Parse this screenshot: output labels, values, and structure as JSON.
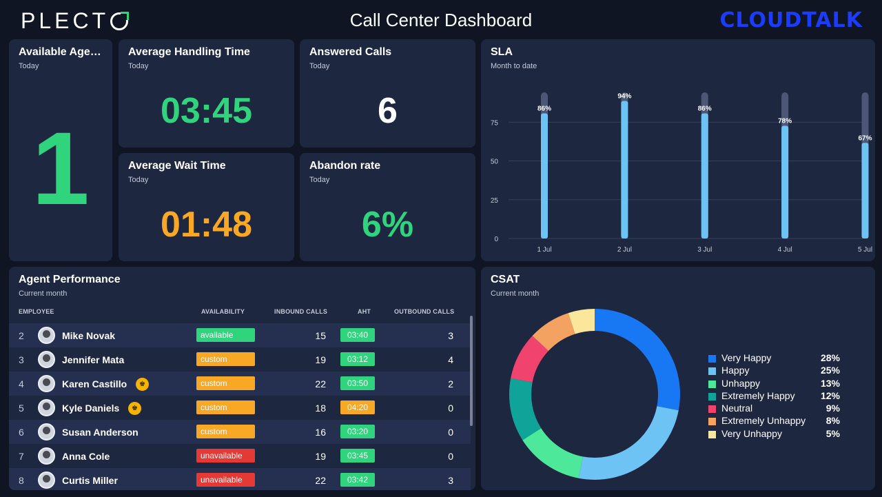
{
  "header": {
    "brand_left": "PLECT",
    "title": "Call Center Dashboard",
    "brand_right": "CLOUDTALK"
  },
  "colors": {
    "background": "#0f1522",
    "card": "#1e2740",
    "green": "#2fd47d",
    "orange": "#f9a825",
    "red": "#e53935",
    "blue_brand": "#1b3cff",
    "bar": "#6ec3f5"
  },
  "cards": {
    "available_agents": {
      "title": "Available Age…",
      "subtitle": "Today",
      "value": "1"
    },
    "aht": {
      "title": "Average Handling Time",
      "subtitle": "Today",
      "value": "03:45"
    },
    "answered": {
      "title": "Answered Calls",
      "subtitle": "Today",
      "value": "6"
    },
    "awt": {
      "title": "Average Wait Time",
      "subtitle": "Today",
      "value": "01:48"
    },
    "abandon": {
      "title": "Abandon rate",
      "subtitle": "Today",
      "value": "6%"
    },
    "sla": {
      "title": "SLA",
      "subtitle": "Month to date"
    },
    "agent_perf": {
      "title": "Agent Performance",
      "subtitle": "Current month"
    },
    "csat": {
      "title": "CSAT",
      "subtitle": "Current month"
    }
  },
  "table": {
    "headers": {
      "employee": "EMPLOYEE",
      "availability": "AVAILABILITY",
      "inbound": "INBOUND CALLS",
      "aht": "AHT",
      "outbound": "OUTBOUND CALLS"
    },
    "rows": [
      {
        "idx": "2",
        "name": "Mike Novak",
        "availability": "available",
        "inbound": "15",
        "aht": "03:40",
        "outbound": "3"
      },
      {
        "idx": "3",
        "name": "Jennifer Mata",
        "availability": "custom",
        "inbound": "19",
        "aht": "03:12",
        "outbound": "4"
      },
      {
        "idx": "4",
        "name": "Karen Castillo",
        "availability": "custom",
        "inbound": "22",
        "aht": "03:50",
        "outbound": "2"
      },
      {
        "idx": "5",
        "name": "Kyle Daniels",
        "availability": "custom",
        "inbound": "18",
        "aht": "04:20",
        "outbound": "0"
      },
      {
        "idx": "6",
        "name": "Susan Anderson",
        "availability": "custom",
        "inbound": "16",
        "aht": "03:20",
        "outbound": "0"
      },
      {
        "idx": "7",
        "name": "Anna Cole",
        "availability": "unavailable",
        "inbound": "19",
        "aht": "03:45",
        "outbound": "0"
      },
      {
        "idx": "8",
        "name": "Curtis Miller",
        "availability": "unavailable",
        "inbound": "22",
        "aht": "03:42",
        "outbound": "3"
      }
    ]
  },
  "chart_data": [
    {
      "type": "bar",
      "categories": [
        "1 Jul",
        "2 Jul",
        "3 Jul",
        "4 Jul",
        "5 Jul"
      ],
      "values": [
        86,
        94,
        86,
        78,
        67
      ],
      "value_labels": [
        "86%",
        "94%",
        "86%",
        "78%",
        "67%"
      ],
      "yticks": [
        "0",
        "25",
        "50",
        "75"
      ],
      "ylim": [
        0,
        100
      ],
      "grid": true
    },
    {
      "type": "pie",
      "labels": [
        "Very Happy",
        "Happy",
        "Unhappy",
        "Extremely Happy",
        "Neutral",
        "Extremely Unhappy",
        "Very Unhappy"
      ],
      "values": [
        28,
        25,
        13,
        12,
        9,
        8,
        5
      ],
      "value_labels": [
        "28%",
        "25%",
        "13%",
        "12%",
        "9%",
        "8%",
        "5%"
      ],
      "colors": [
        "#1877f2",
        "#6ec3f5",
        "#4ee89a",
        "#0fa39a",
        "#f0436e",
        "#f4a261",
        "#fbe79c"
      ],
      "legend": "right"
    }
  ]
}
